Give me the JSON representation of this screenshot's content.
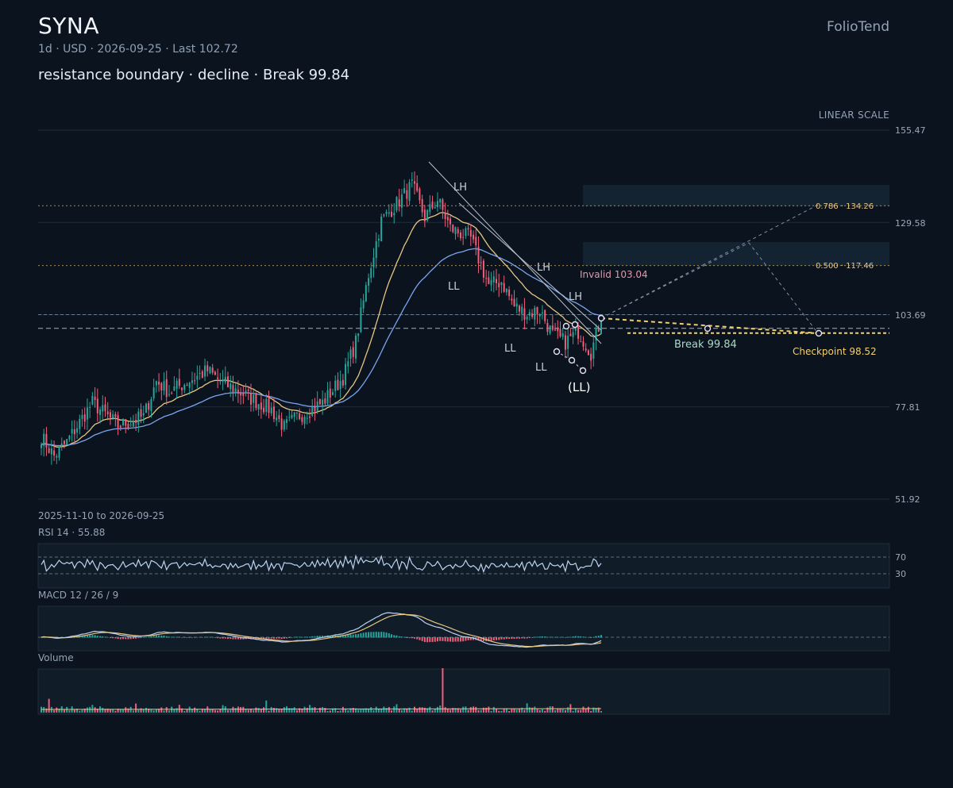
{
  "header": {
    "ticker": "SYNA",
    "brand": "FolioTend",
    "meta": "1d · USD · 2026-09-25 · Last 102.72",
    "subtitle": "resistance boundary · decline · Break 99.84",
    "scale_label": "LINEAR SCALE",
    "date_range": "2025-11-10 to 2026-09-25"
  },
  "panels": {
    "rsi_title": "RSI 14 · 55.88",
    "macd_title": "MACD 12 / 26 / 9",
    "volume_title": "Volume",
    "rsi_levels": [
      "70",
      "30"
    ]
  },
  "colors": {
    "up": "#26a69a",
    "down": "#ef5f79",
    "ma_fast": "#e8c583",
    "ma_slow": "#7aa5f0",
    "accent": "#f2d06b",
    "grid": "#1f2c3b"
  },
  "chart_data": {
    "type": "candlestick",
    "interval": "1d",
    "currency": "USD",
    "x_range": [
      "2025-11-10",
      "2026-09-25"
    ],
    "bars": 220,
    "ylim": [
      51.92,
      155.47
    ],
    "y_ticks": [
      "155.47",
      "129.58",
      "103.69",
      "77.81",
      "51.92"
    ],
    "last": 102.72,
    "price_anchors": [
      [
        0,
        69.5
      ],
      [
        5,
        64.0
      ],
      [
        10,
        68.0
      ],
      [
        20,
        79.0
      ],
      [
        30,
        72.5
      ],
      [
        40,
        75.0
      ],
      [
        45,
        85.0
      ],
      [
        50,
        82.0
      ],
      [
        60,
        86.0
      ],
      [
        65,
        88.0
      ],
      [
        70,
        85.0
      ],
      [
        80,
        81.0
      ],
      [
        90,
        77.0
      ],
      [
        95,
        72.0
      ],
      [
        100,
        75.0
      ],
      [
        110,
        79.0
      ],
      [
        118,
        86.0
      ],
      [
        123,
        96.0
      ],
      [
        128,
        115.0
      ],
      [
        133,
        130.0
      ],
      [
        138,
        134.0
      ],
      [
        145,
        140.0
      ],
      [
        150,
        131.0
      ],
      [
        155,
        136.0
      ],
      [
        160,
        128.0
      ],
      [
        168,
        125.0
      ],
      [
        175,
        112.0
      ],
      [
        180,
        113.0
      ],
      [
        185,
        106.0
      ],
      [
        190,
        104.0
      ],
      [
        195,
        105.0
      ],
      [
        200,
        98.0
      ],
      [
        205,
        96.0
      ],
      [
        210,
        99.0
      ],
      [
        215,
        93.0
      ],
      [
        219,
        102.72
      ]
    ],
    "annotations": {
      "swings": [
        {
          "label": "LH",
          "price": 140.5
        },
        {
          "label": "LL",
          "price": 117.0
        },
        {
          "label": "LH",
          "price": 118.0
        },
        {
          "label": "LL",
          "price": 100.0
        },
        {
          "label": "LH",
          "price": 105.0
        },
        {
          "label": "LL",
          "price": 92.0
        },
        {
          "label": "(LL)",
          "price": 88.0
        }
      ],
      "invalid_label": "Invalid 103.04",
      "invalid": 103.04,
      "break_label": "Break 99.84",
      "break": 99.84,
      "checkpoint_label": "Checkpoint 98.52",
      "checkpoint": 98.52,
      "fib_labels": [
        "0.786 · 134.26",
        "0.500 · 117.46"
      ],
      "fib_levels": [
        134.26,
        117.46
      ]
    },
    "rsi": {
      "value": 55.88,
      "period": 14,
      "levels": [
        70,
        30
      ]
    },
    "macd": {
      "fast": 12,
      "slow": 26,
      "signal": 9
    }
  }
}
